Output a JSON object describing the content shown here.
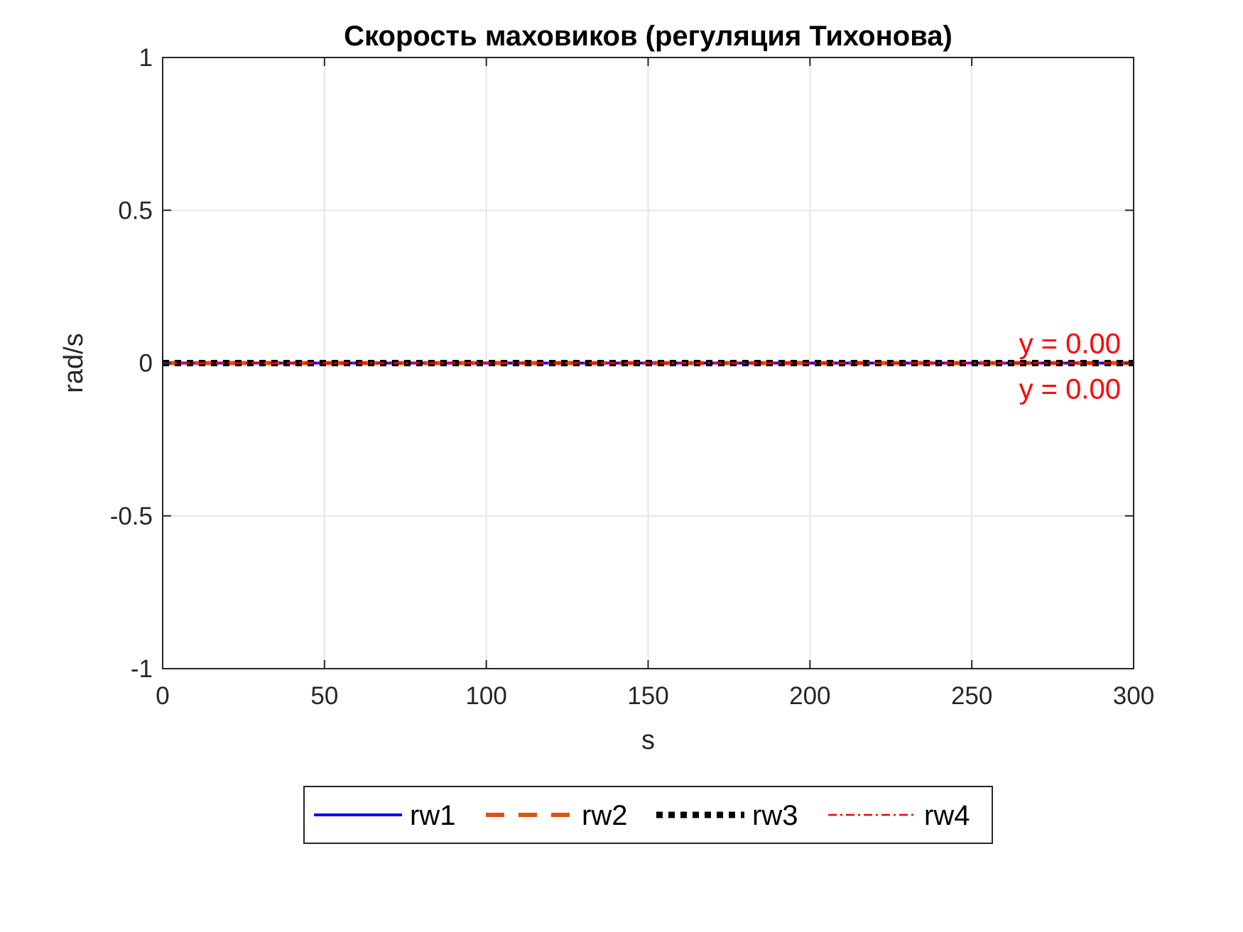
{
  "chart_data": {
    "type": "line",
    "title": "Скорость маховиков (регуляция Тихонова)",
    "xlabel": "s",
    "ylabel": "rad/s",
    "xlim": [
      0,
      300
    ],
    "ylim": [
      -1,
      1
    ],
    "grid": true,
    "x_ticks": [
      0,
      50,
      100,
      150,
      200,
      250,
      300
    ],
    "x_tick_labels": [
      "0",
      "50",
      "100",
      "150",
      "200",
      "250",
      "300"
    ],
    "y_ticks": [
      -1,
      -0.5,
      0,
      0.5,
      1
    ],
    "y_tick_labels": [
      "-1",
      "-0.5",
      "0",
      "0.5",
      "1"
    ],
    "x": [
      0,
      300
    ],
    "series": [
      {
        "name": "rw1",
        "values": [
          0,
          0
        ],
        "color": "#0000ff",
        "style": "solid"
      },
      {
        "name": "rw2",
        "values": [
          0,
          0
        ],
        "color": "#d95319",
        "style": "dashed"
      },
      {
        "name": "rw3",
        "values": [
          0,
          0
        ],
        "color": "#000000",
        "style": "dotted"
      },
      {
        "name": "rw4",
        "values": [
          0,
          0
        ],
        "color": "#ff0000",
        "style": "dashdot"
      }
    ],
    "annotations": [
      {
        "text": "y = 0.00",
        "x": 300,
        "y": 0,
        "placement": "above",
        "color": "#ff0000"
      },
      {
        "text": "y = 0.00",
        "x": 300,
        "y": 0,
        "placement": "below",
        "color": "#ff0000"
      }
    ],
    "legend": {
      "placement": "bottom-center-outside",
      "entries": [
        "rw1",
        "rw2",
        "rw3",
        "rw4"
      ]
    }
  }
}
